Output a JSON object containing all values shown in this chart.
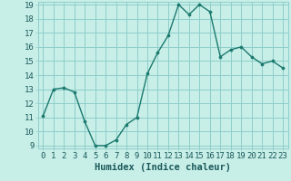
{
  "x": [
    0,
    1,
    2,
    3,
    4,
    5,
    6,
    7,
    8,
    9,
    10,
    11,
    12,
    13,
    14,
    15,
    16,
    17,
    18,
    19,
    20,
    21,
    22,
    23
  ],
  "y": [
    11.1,
    13.0,
    13.1,
    12.8,
    10.7,
    9.0,
    9.0,
    9.4,
    10.5,
    11.0,
    14.1,
    15.6,
    16.8,
    19.0,
    18.3,
    19.0,
    18.5,
    15.3,
    15.8,
    16.0,
    15.3,
    14.8,
    15.0,
    14.5
  ],
  "line_color": "#1a7a6e",
  "marker_color": "#1a7a6e",
  "bg_color": "#c8eee8",
  "grid_color": "#8ececa",
  "xlabel": "Humidex (Indice chaleur)",
  "ylim": [
    9,
    19
  ],
  "xlim": [
    -0.5,
    23.5
  ],
  "yticks": [
    9,
    10,
    11,
    12,
    13,
    14,
    15,
    16,
    17,
    18,
    19
  ],
  "xticks": [
    0,
    1,
    2,
    3,
    4,
    5,
    6,
    7,
    8,
    9,
    10,
    11,
    12,
    13,
    14,
    15,
    16,
    17,
    18,
    19,
    20,
    21,
    22,
    23
  ],
  "xtick_labels": [
    "0",
    "1",
    "2",
    "3",
    "4",
    "5",
    "6",
    "7",
    "8",
    "9",
    "10",
    "11",
    "12",
    "13",
    "14",
    "15",
    "16",
    "17",
    "18",
    "19",
    "20",
    "21",
    "22",
    "23"
  ],
  "font_color": "#1a5a5a",
  "tick_fontsize": 6.5,
  "label_fontsize": 7.5
}
